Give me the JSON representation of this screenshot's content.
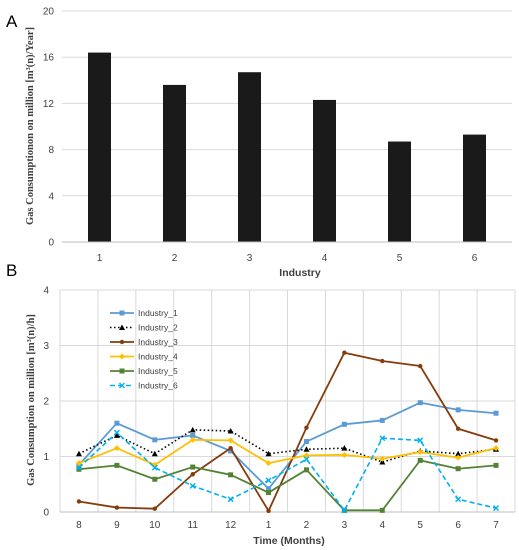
{
  "panels": {
    "a": {
      "letter": "A",
      "ylabel": "Gas Consumptionon on million  [m³(n)/Year]",
      "xlabel": "Industry"
    },
    "b": {
      "letter": "B",
      "ylabel": "Gas Consumption on million [m³(n)/h]",
      "xlabel": "Time (Months)"
    }
  },
  "chart_data": [
    {
      "type": "bar",
      "title": "",
      "xlabel": "Industry",
      "ylabel": "Gas Consumptionon on million  [m³(n)/Year]",
      "categories": [
        "1",
        "2",
        "3",
        "4",
        "5",
        "6"
      ],
      "values": [
        16.4,
        13.6,
        14.7,
        12.3,
        8.7,
        9.3
      ],
      "ylim": [
        0,
        20
      ],
      "yticks": [
        0,
        4,
        8,
        12,
        16,
        20
      ],
      "grid": true,
      "colors": {
        "bar": "#1a1a1a"
      }
    },
    {
      "type": "line",
      "title": "",
      "xlabel": "Time (Months)",
      "ylabel": "Gas Consumption on million [m³(n)/h]",
      "categories": [
        "8",
        "9",
        "10",
        "11",
        "12",
        "1",
        "2",
        "3",
        "4",
        "5",
        "6",
        "7"
      ],
      "ylim": [
        0,
        4
      ],
      "yticks": [
        0,
        1,
        2,
        3,
        4
      ],
      "grid": true,
      "legend_position": "top-left",
      "series": [
        {
          "name": "Industry_1",
          "color": "#5b9bd5",
          "dash": "solid",
          "marker": "square",
          "values": [
            0.85,
            1.6,
            1.3,
            1.38,
            1.1,
            0.42,
            1.27,
            1.58,
            1.65,
            1.97,
            1.84,
            1.78
          ]
        },
        {
          "name": "Industry_2",
          "color": "#000000",
          "dash": "dotted",
          "marker": "triangle",
          "values": [
            1.05,
            1.38,
            1.05,
            1.48,
            1.46,
            1.05,
            1.13,
            1.15,
            0.9,
            1.1,
            1.05,
            1.13
          ]
        },
        {
          "name": "Industry_3",
          "color": "#843c0c",
          "dash": "solid",
          "marker": "circle",
          "values": [
            0.19,
            0.08,
            0.06,
            0.68,
            1.15,
            0.02,
            1.52,
            2.87,
            2.72,
            2.63,
            1.5,
            1.29
          ]
        },
        {
          "name": "Industry_4",
          "color": "#ffc000",
          "dash": "solid",
          "marker": "diamond",
          "values": [
            0.88,
            1.15,
            0.85,
            1.3,
            1.29,
            0.88,
            1.02,
            1.03,
            0.96,
            1.08,
            0.98,
            1.15
          ]
        },
        {
          "name": "Industry_5",
          "color": "#548235",
          "dash": "solid",
          "marker": "square",
          "values": [
            0.77,
            0.84,
            0.59,
            0.81,
            0.67,
            0.35,
            0.76,
            0.03,
            0.03,
            0.93,
            0.78,
            0.84
          ]
        },
        {
          "name": "Industry_6",
          "color": "#00b0f0",
          "dash": "dashed",
          "marker": "x",
          "values": [
            0.8,
            1.43,
            0.8,
            0.47,
            0.23,
            0.57,
            0.95,
            0.03,
            1.33,
            1.29,
            0.23,
            0.07
          ]
        }
      ]
    }
  ]
}
